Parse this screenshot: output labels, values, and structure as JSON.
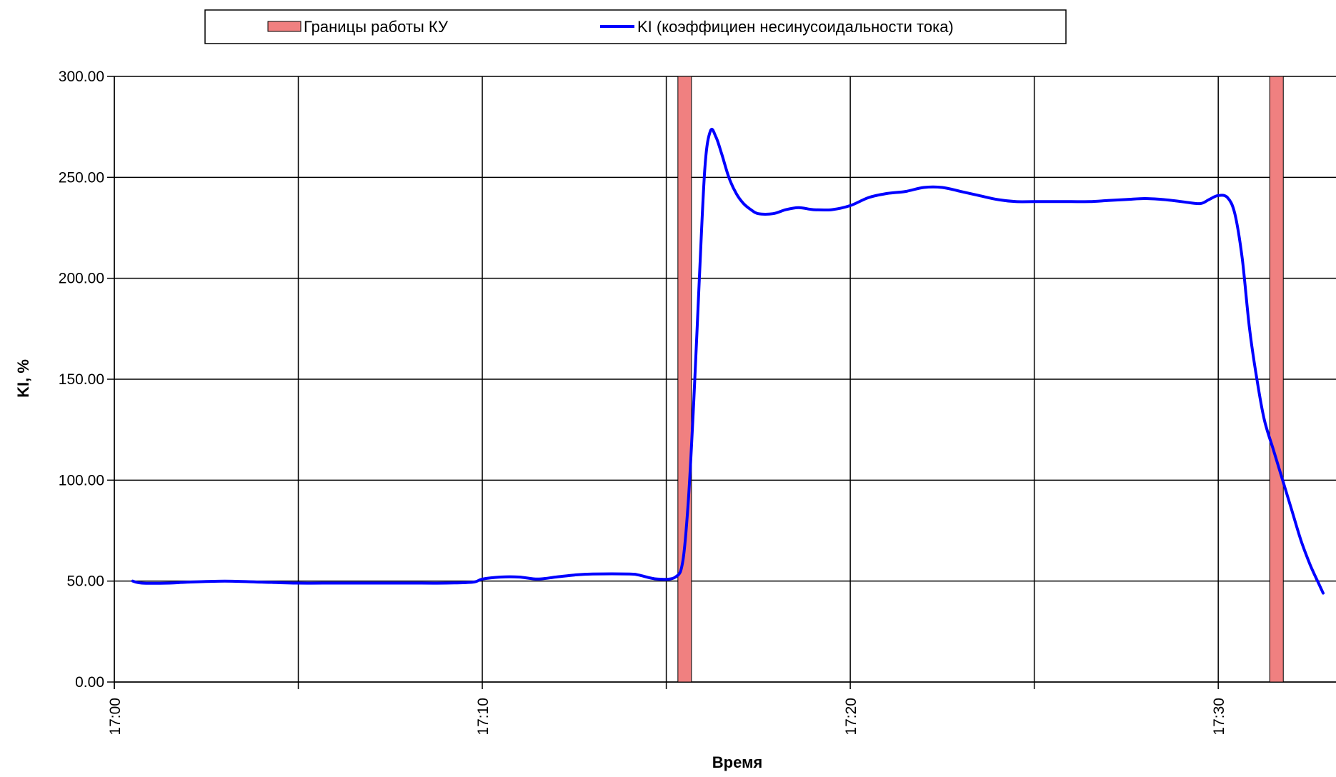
{
  "chart_data": {
    "type": "line",
    "title": "",
    "xlabel": "Время",
    "ylabel": "KI, %",
    "ylim": [
      0,
      300
    ],
    "xlim_minutes": [
      0,
      33.2
    ],
    "y_ticks": [
      0,
      50,
      100,
      150,
      200,
      250,
      300
    ],
    "y_tick_labels": [
      "0.00",
      "50.00",
      "100.00",
      "150.00",
      "200.00",
      "250.00",
      "300.00"
    ],
    "x_ticks": [
      0,
      5,
      10,
      15,
      20,
      25,
      30
    ],
    "x_tick_labels": [
      "17:00",
      "",
      "17:10",
      "",
      "17:20",
      "",
      "17:30"
    ],
    "grid": true,
    "legend_position": "top",
    "colors": {
      "line": "#0000ff",
      "band": "#f08080",
      "band_stroke": "#000000"
    },
    "series": [
      {
        "name": "KI (коэффициен несинусоидальности тока)",
        "kind": "line",
        "time": [
          "17:00:30",
          "17:00:45",
          "17:01:30",
          "17:02:00",
          "17:03:00",
          "17:04:00",
          "17:05:00",
          "17:06:00",
          "17:07:00",
          "17:08:00",
          "17:09:00",
          "17:09:45",
          "17:10:00",
          "17:10:30",
          "17:11:00",
          "17:11:30",
          "17:12:00",
          "17:12:30",
          "17:13:00",
          "17:14:00",
          "17:14:15",
          "17:14:45",
          "17:15:15",
          "17:15:27",
          "17:15:36",
          "17:15:45",
          "17:15:54",
          "17:16:03",
          "17:16:12",
          "17:16:21",
          "17:16:30",
          "17:16:42",
          "17:16:54",
          "17:17:06",
          "17:17:18",
          "17:17:30",
          "17:17:54",
          "17:18:15",
          "17:18:36",
          "17:19:00",
          "17:19:30",
          "17:20:00",
          "17:20:30",
          "17:21:00",
          "17:21:30",
          "17:22:00",
          "17:22:30",
          "17:23:00",
          "17:23:30",
          "17:24:00",
          "17:24:30",
          "17:25:00",
          "17:25:30",
          "17:26:00",
          "17:26:30",
          "17:27:00",
          "17:27:30",
          "17:28:00",
          "17:28:30",
          "17:29:00",
          "17:29:30",
          "17:29:45",
          "17:30:00",
          "17:30:15",
          "17:30:27",
          "17:30:39",
          "17:30:51",
          "17:31:03",
          "17:31:15",
          "17:31:30",
          "17:31:45",
          "17:32:00",
          "17:32:15",
          "17:32:30",
          "17:32:45",
          "17:32:51"
        ],
        "values": [
          50,
          49,
          49,
          49.5,
          50,
          49.5,
          49,
          49,
          49,
          49,
          49,
          49.5,
          51,
          52,
          52,
          51,
          52,
          53,
          53.5,
          53.5,
          53,
          51,
          52,
          60,
          90,
          140,
          200,
          255,
          273,
          270,
          262,
          250,
          242,
          237,
          234,
          232,
          232,
          234,
          235,
          234,
          234,
          236,
          240,
          242,
          243,
          245,
          245,
          243,
          241,
          239,
          238,
          238,
          238,
          238,
          238,
          238.5,
          239,
          239.5,
          239,
          238,
          237,
          239,
          241,
          240,
          232,
          210,
          175,
          150,
          130,
          115,
          100,
          85,
          70,
          58,
          48,
          44
        ]
      },
      {
        "name": "Границы работы КУ",
        "kind": "band",
        "time": [
          "17:15:30",
          "17:31:35"
        ],
        "values": [
          300,
          300
        ]
      }
    ]
  }
}
